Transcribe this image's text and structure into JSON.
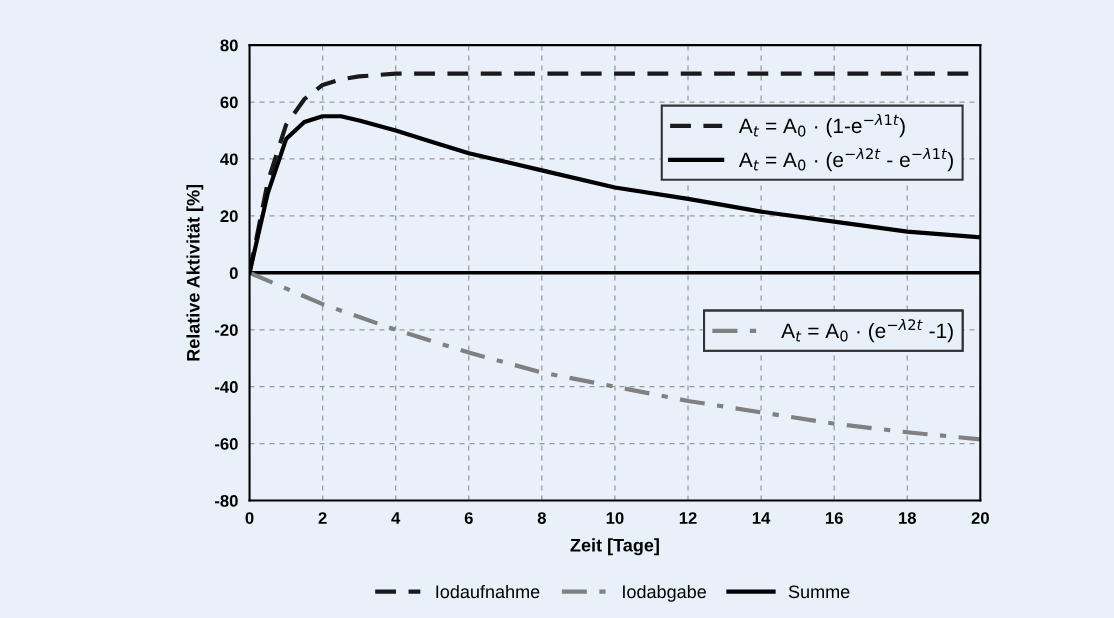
{
  "chart_data": {
    "type": "line",
    "xlabel": "Zeit [Tage]",
    "ylabel": "Relative Aktivität [%]",
    "xlim": [
      0,
      20
    ],
    "xticks": [
      0,
      2,
      4,
      6,
      8,
      10,
      12,
      14,
      16,
      18,
      20
    ],
    "ylim": [
      -80,
      80
    ],
    "yticks": [
      -80,
      -60,
      -40,
      -20,
      0,
      20,
      40,
      60,
      80
    ],
    "grid": true,
    "legend": "bottom",
    "series": [
      {
        "name": "Iodaufnahme",
        "color": "#1a1a1a",
        "line_style": "dashed",
        "x": [
          0,
          0.5,
          1,
          1.5,
          2,
          2.5,
          3,
          4,
          5,
          6,
          8,
          10,
          12,
          14,
          16,
          18,
          20
        ],
        "values": [
          0,
          32,
          52,
          61,
          66,
          68,
          69,
          70,
          70,
          70,
          70,
          70,
          70,
          70,
          70,
          70,
          70
        ]
      },
      {
        "name": "Iodabgabe",
        "color": "#808080",
        "line_style": "dashdot",
        "x": [
          0,
          2,
          4,
          6,
          8,
          10,
          12,
          14,
          16,
          18,
          20
        ],
        "values": [
          0,
          -11,
          -20,
          -28,
          -35,
          -40,
          -45,
          -49,
          -53,
          -56,
          -58.5
        ]
      },
      {
        "name": "Summe",
        "color": "#000000",
        "line_style": "solid",
        "x": [
          0,
          0.5,
          1,
          1.5,
          2,
          2.5,
          3,
          4,
          5,
          6,
          8,
          10,
          12,
          14,
          16,
          18,
          20
        ],
        "values": [
          0,
          28,
          47,
          53,
          55,
          55,
          53.5,
          50,
          46,
          42,
          36,
          30,
          26,
          21.5,
          18,
          14.5,
          12.5
        ]
      }
    ],
    "ref_lines": [
      {
        "axis": "y",
        "value": 0,
        "color": "#000000"
      }
    ],
    "annotations": [
      "A$_{t}$ = A$_{0}$ · (1-e$^{−λ1t}$)",
      "A$_{t}$ = A$_{0}$ · (e$^{−λ2t}$ - e$^{−λ1t}$)",
      "A$_{t}$ = A$_{0}$ · (e$^{−λ2t}$ -1)"
    ]
  }
}
